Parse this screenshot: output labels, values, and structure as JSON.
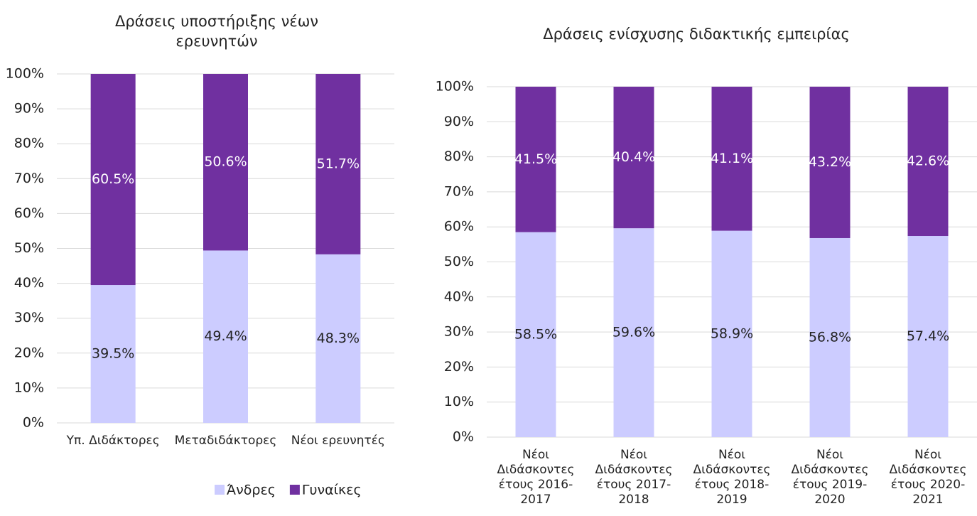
{
  "chart_data": [
    {
      "type": "stacked_bar",
      "title": "Δράσεις υποστήριξης νέων ερευνητών",
      "categories": [
        "Υπ. Διδάκτορες",
        "Μεταδιδάκτορες",
        "Νέοι ερευνητές"
      ],
      "series": [
        {
          "name": "Άνδρες",
          "color": "#ccccff",
          "values": [
            39.5,
            49.4,
            48.3
          ],
          "value_labels": [
            "39.5%",
            "49.4%",
            "48.3%"
          ]
        },
        {
          "name": "Γυναίκες",
          "color": "#7030a0",
          "values": [
            60.5,
            50.6,
            51.7
          ],
          "value_labels": [
            "60.5%",
            "50.6%",
            "51.7%"
          ]
        }
      ],
      "ylim": [
        0,
        100
      ],
      "yticks": [
        {
          "value": 0,
          "label": "0%"
        },
        {
          "value": 10,
          "label": "10%"
        },
        {
          "value": 20,
          "label": "20%"
        },
        {
          "value": 30,
          "label": "30%"
        },
        {
          "value": 40,
          "label": "40%"
        },
        {
          "value": 50,
          "label": "50%"
        },
        {
          "value": 60,
          "label": "60%"
        },
        {
          "value": 70,
          "label": "70%"
        },
        {
          "value": 80,
          "label": "80%"
        },
        {
          "value": 90,
          "label": "90%"
        },
        {
          "value": 100,
          "label": "100%"
        }
      ],
      "grid": true,
      "legend": "bottom"
    },
    {
      "type": "stacked_bar",
      "title": "Δράσεις ενίσχυσης διδακτικής εμπειρίας",
      "categories": [
        "Νέοι Διδάσκοντες έτους 2016-2017",
        "Νέοι Διδάσκοντες έτους 2017-2018",
        "Νέοι Διδάσκοντες έτους 2018-2019",
        "Νέοι Διδάσκοντες έτους 2019-2020",
        "Νέοι Διδάσκοντες έτους 2020-2021"
      ],
      "series": [
        {
          "name": "Άνδρες",
          "color": "#ccccff",
          "values": [
            58.5,
            59.6,
            58.9,
            56.8,
            57.4
          ],
          "value_labels": [
            "58.5%",
            "59.6%",
            "58.9%",
            "56.8%",
            "57.4%"
          ]
        },
        {
          "name": "Γυναίκες",
          "color": "#7030a0",
          "values": [
            41.5,
            40.4,
            41.1,
            43.2,
            42.6
          ],
          "value_labels": [
            "41.5%",
            "40.4%",
            "41.1%",
            "43.2%",
            "42.6%"
          ]
        }
      ],
      "ylim": [
        0,
        100
      ],
      "yticks": [
        {
          "value": 0,
          "label": "0%"
        },
        {
          "value": 10,
          "label": "10%"
        },
        {
          "value": 20,
          "label": "20%"
        },
        {
          "value": 30,
          "label": "30%"
        },
        {
          "value": 40,
          "label": "40%"
        },
        {
          "value": 50,
          "label": "50%"
        },
        {
          "value": 60,
          "label": "60%"
        },
        {
          "value": 70,
          "label": "70%"
        },
        {
          "value": 80,
          "label": "80%"
        },
        {
          "value": 90,
          "label": "90%"
        },
        {
          "value": 100,
          "label": "100%"
        }
      ],
      "grid": true
    }
  ]
}
